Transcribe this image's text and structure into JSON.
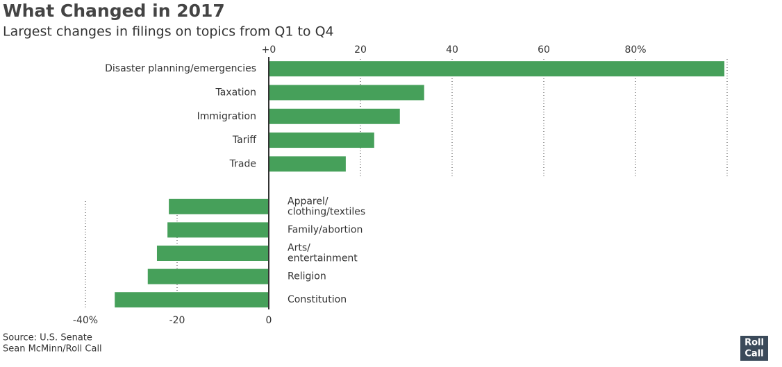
{
  "title": "What Changed in 2017",
  "subtitle": "Largest changes in filings on topics from Q1 to Q4",
  "source": "Source: U.S. Senate",
  "credit": "Sean McMinn/Roll Call",
  "logo": [
    "Roll",
    "Call"
  ],
  "chart_data": [
    {
      "type": "hbar",
      "color": "#46a05a",
      "grid": true,
      "categories": [
        [
          "Disaster planning/emergencies"
        ],
        [
          "Taxation"
        ],
        [
          "Immigration"
        ],
        [
          "Tariff"
        ],
        [
          "Trade"
        ]
      ],
      "values": [
        99.4,
        33.9,
        28.6,
        23,
        16.8
      ],
      "xlim": [
        0,
        100
      ],
      "xticks": [
        {
          "value": 0,
          "label": "+0"
        },
        20,
        40,
        60,
        {
          "value": 80,
          "label": "80%"
        }
      ]
    },
    {
      "type": "hbar",
      "color": "#46a05a",
      "grid": true,
      "categories": [
        [
          "Apparel/",
          "clothing/textiles"
        ],
        [
          "Family/abortion"
        ],
        [
          "Arts/",
          "entertainment"
        ],
        [
          "Religion"
        ],
        [
          "Constitution"
        ]
      ],
      "values": [
        -21.8,
        -22.1,
        -24.4,
        -26.4,
        -33.6
      ],
      "xlim": [
        -40,
        0
      ],
      "xticks": [
        {
          "value": -40,
          "label": "-40%"
        },
        -20,
        0
      ]
    }
  ]
}
